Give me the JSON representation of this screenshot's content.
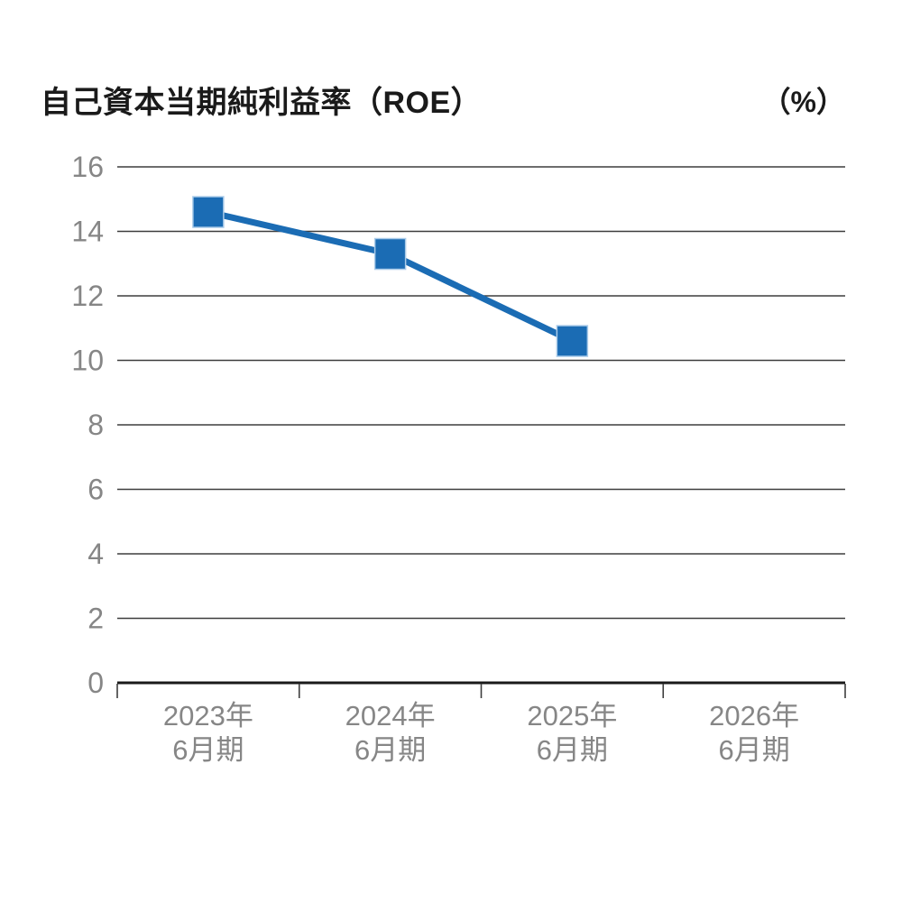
{
  "header": {
    "title": "自己資本当期純利益率（ROE）",
    "unit_label": "（%）"
  },
  "chart_data": {
    "type": "line",
    "title": "自己資本当期純利益率（ROE）",
    "unit": "（%）",
    "series_name": "ROE",
    "categories": [
      [
        "2023年",
        "6月期"
      ],
      [
        "2024年",
        "6月期"
      ],
      [
        "2025年",
        "6月期"
      ],
      [
        "2026年",
        "6月期"
      ]
    ],
    "values": [
      14.6,
      13.3,
      10.6,
      null
    ],
    "ylim": [
      0,
      16
    ],
    "yticks": [
      0,
      2,
      4,
      6,
      8,
      10,
      12,
      14,
      16
    ],
    "ytick_step": 2,
    "xlabel": "",
    "ylabel": "",
    "grid": true,
    "legend_position": "none",
    "marker": "square",
    "colors": {
      "line": "#1b6cb4",
      "marker": "#1b6cb4",
      "marker_edge": "#aacbe9",
      "grid": "#3d3d3d",
      "axis": "#1a1a1a",
      "tick_label": "#868686",
      "title": "#1a1a1a",
      "background": "#ffffff"
    }
  }
}
